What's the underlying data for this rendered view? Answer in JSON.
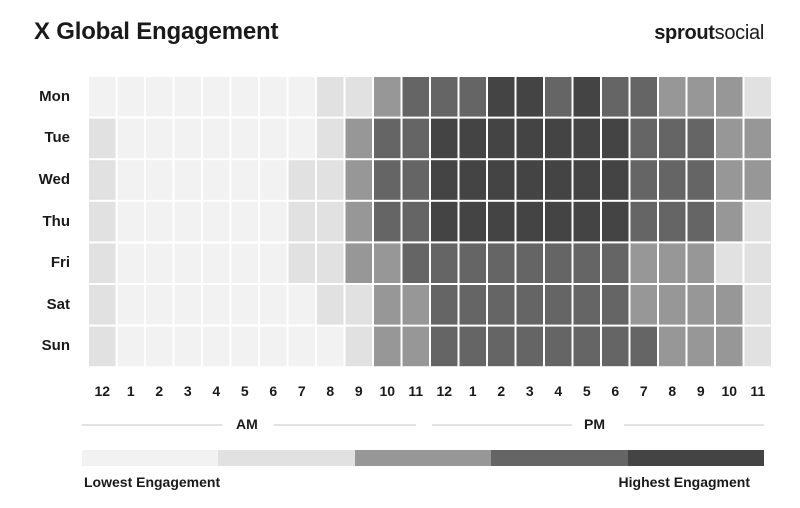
{
  "title": "X Global Engagement",
  "logo": {
    "bold": "sprout",
    "light": "social"
  },
  "chart_data": {
    "type": "heatmap",
    "title": "X Global Engagement",
    "rows": [
      "Mon",
      "Tue",
      "Wed",
      "Thu",
      "Fri",
      "Sat",
      "Sun"
    ],
    "columns": [
      "12",
      "1",
      "2",
      "3",
      "4",
      "5",
      "6",
      "7",
      "8",
      "9",
      "10",
      "11",
      "12",
      "1",
      "2",
      "3",
      "4",
      "5",
      "6",
      "7",
      "8",
      "9",
      "10",
      "11"
    ],
    "periods": [
      "AM",
      "PM"
    ],
    "scale_min": 1,
    "scale_max": 5,
    "values": [
      [
        1,
        1,
        1,
        1,
        1,
        1,
        1,
        1,
        2,
        2,
        3,
        4,
        4,
        4,
        5,
        5,
        4,
        5,
        4,
        4,
        3,
        3,
        3,
        2
      ],
      [
        2,
        1,
        1,
        1,
        1,
        1,
        1,
        1,
        2,
        3,
        4,
        4,
        5,
        5,
        5,
        5,
        5,
        5,
        5,
        4,
        4,
        4,
        3,
        3
      ],
      [
        2,
        1,
        1,
        1,
        1,
        1,
        1,
        2,
        2,
        3,
        4,
        4,
        5,
        5,
        5,
        5,
        5,
        5,
        5,
        4,
        4,
        4,
        3,
        3
      ],
      [
        2,
        1,
        1,
        1,
        1,
        1,
        1,
        2,
        2,
        3,
        4,
        4,
        5,
        5,
        5,
        5,
        5,
        5,
        5,
        4,
        4,
        4,
        3,
        2
      ],
      [
        2,
        1,
        1,
        1,
        1,
        1,
        1,
        2,
        2,
        3,
        3,
        4,
        4,
        4,
        4,
        4,
        4,
        4,
        4,
        3,
        3,
        3,
        2,
        2
      ],
      [
        2,
        1,
        1,
        1,
        1,
        1,
        1,
        1,
        2,
        2,
        3,
        3,
        4,
        4,
        4,
        4,
        4,
        4,
        4,
        3,
        3,
        3,
        3,
        2
      ],
      [
        2,
        1,
        1,
        1,
        1,
        1,
        1,
        1,
        1,
        2,
        3,
        3,
        4,
        4,
        4,
        4,
        4,
        4,
        4,
        4,
        3,
        3,
        3,
        2
      ]
    ],
    "legend": {
      "colors": [
        "#f2f2f2",
        "#e1e1e1",
        "#979797",
        "#656565",
        "#444444"
      ],
      "low_label": "Lowest Engagement",
      "high_label": "Highest Engagment"
    }
  }
}
